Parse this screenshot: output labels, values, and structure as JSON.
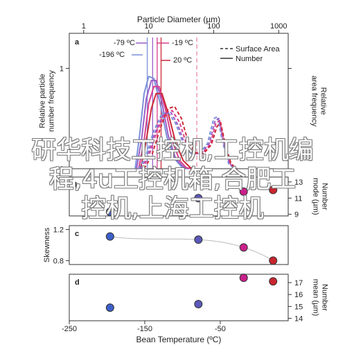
{
  "chart_data": [
    {
      "panel_label": "a",
      "type": "line",
      "top_xlabel": "Particle Diameter (µm)",
      "top_xscale": "log",
      "top_xticks": [
        1,
        10,
        100,
        1000
      ],
      "top_xticklabels": [
        "1",
        "10",
        "100",
        "1000"
      ],
      "ylabel_left": "Relative particle\nnumber frequency",
      "ylabel_right": "Relative\narea frequency",
      "ylim": [
        0,
        1.35
      ],
      "yticks": [
        0,
        1
      ],
      "legend": {
        "placement": "top-right",
        "entries": [
          "Surface Area",
          "Number"
        ]
      },
      "temperature_labels": [
        "-79 ºC",
        "-196 ºC",
        "-19 ºC",
        "20 ºC"
      ],
      "series": [
        {
          "temp": "-196 ºC",
          "kind": "number",
          "color": "#7a8fd8",
          "points": [
            [
              6.2,
              0
            ],
            [
              7.3,
              0.35
            ],
            [
              8.5,
              0.75
            ],
            [
              10,
              0.92
            ],
            [
              12,
              0.9
            ],
            [
              15,
              0.65
            ],
            [
              19,
              0.32
            ],
            [
              25,
              0.1
            ],
            [
              32,
              0.02
            ],
            [
              40,
              0
            ]
          ]
        },
        {
          "temp": "-79 ºC",
          "kind": "number",
          "color": "#9a5fc8",
          "points": [
            [
              6.5,
              0
            ],
            [
              7.8,
              0.3
            ],
            [
              9.2,
              0.7
            ],
            [
              11,
              0.88
            ],
            [
              13,
              0.88
            ],
            [
              16,
              0.66
            ],
            [
              20,
              0.33
            ],
            [
              26,
              0.1
            ],
            [
              34,
              0.02
            ],
            [
              42,
              0
            ]
          ]
        },
        {
          "temp": "-19 ºC",
          "kind": "number",
          "color": "#d93f8c",
          "points": [
            [
              7,
              0
            ],
            [
              8.5,
              0.28
            ],
            [
              10,
              0.65
            ],
            [
              12,
              0.82
            ],
            [
              14.5,
              0.82
            ],
            [
              18,
              0.6
            ],
            [
              23,
              0.28
            ],
            [
              30,
              0.08
            ],
            [
              38,
              0.01
            ],
            [
              46,
              0
            ]
          ]
        },
        {
          "temp": "20 ºC",
          "kind": "number",
          "color": "#cc2936",
          "points": [
            [
              7.5,
              0
            ],
            [
              9,
              0.25
            ],
            [
              11,
              0.6
            ],
            [
              13,
              0.75
            ],
            [
              16,
              0.75
            ],
            [
              20,
              0.55
            ],
            [
              26,
              0.26
            ],
            [
              34,
              0.08
            ],
            [
              44,
              0.01
            ],
            [
              52,
              0
            ]
          ]
        },
        {
          "temp": "-196 ºC",
          "kind": "area",
          "color": "#7a8fd8",
          "points": [
            [
              7,
              0
            ],
            [
              9,
              0.12
            ],
            [
              12,
              0.38
            ],
            [
              16,
              0.55
            ],
            [
              20,
              0.56
            ],
            [
              26,
              0.45
            ],
            [
              34,
              0.25
            ],
            [
              45,
              0.15
            ],
            [
              60,
              0.15
            ],
            [
              80,
              0.25
            ],
            [
              100,
              0.5
            ],
            [
              115,
              0.52
            ],
            [
              135,
              0.28
            ],
            [
              170,
              0.05
            ],
            [
              210,
              0
            ]
          ]
        },
        {
          "temp": "-79 ºC",
          "kind": "area",
          "color": "#9a5fc8",
          "points": [
            [
              7.5,
              0
            ],
            [
              9.5,
              0.12
            ],
            [
              12.5,
              0.36
            ],
            [
              17,
              0.55
            ],
            [
              22,
              0.56
            ],
            [
              28,
              0.44
            ],
            [
              36,
              0.24
            ],
            [
              48,
              0.15
            ],
            [
              64,
              0.15
            ],
            [
              85,
              0.25
            ],
            [
              105,
              0.48
            ],
            [
              120,
              0.5
            ],
            [
              140,
              0.27
            ],
            [
              175,
              0.05
            ],
            [
              215,
              0
            ]
          ]
        },
        {
          "temp": "-19 ºC",
          "kind": "area",
          "color": "#d93f8c",
          "points": [
            [
              8,
              0
            ],
            [
              10,
              0.12
            ],
            [
              13.5,
              0.38
            ],
            [
              18,
              0.56
            ],
            [
              23,
              0.58
            ],
            [
              30,
              0.46
            ],
            [
              38,
              0.25
            ],
            [
              50,
              0.15
            ],
            [
              66,
              0.15
            ],
            [
              88,
              0.24
            ],
            [
              108,
              0.45
            ],
            [
              124,
              0.48
            ],
            [
              145,
              0.26
            ],
            [
              180,
              0.05
            ],
            [
              220,
              0
            ]
          ]
        },
        {
          "temp": "20 ºC",
          "kind": "area",
          "color": "#cc2936",
          "points": [
            [
              8.5,
              0
            ],
            [
              11,
              0.12
            ],
            [
              15,
              0.4
            ],
            [
              20,
              0.6
            ],
            [
              25,
              0.62
            ],
            [
              32,
              0.5
            ],
            [
              40,
              0.28
            ],
            [
              52,
              0.16
            ],
            [
              70,
              0.15
            ],
            [
              92,
              0.24
            ],
            [
              112,
              0.42
            ],
            [
              128,
              0.46
            ],
            [
              150,
              0.25
            ],
            [
              185,
              0.05
            ],
            [
              225,
              0
            ]
          ]
        }
      ],
      "vlines": [
        {
          "x": 9.5,
          "color": "#7a8fd8",
          "style": "solid"
        },
        {
          "x": 11.5,
          "color": "#9a5fc8",
          "style": "solid"
        },
        {
          "x": 13.5,
          "color": "#d93f8c",
          "style": "solid"
        },
        {
          "x": 15.5,
          "color": "#cc2936",
          "style": "solid"
        },
        {
          "x": 55,
          "color": "#e58aa6",
          "style": "dashed"
        }
      ]
    },
    {
      "panel_label": "b",
      "type": "scatter",
      "ylabel_right": "Number\nmode (µm)",
      "ylim": [
        8.8,
        13.6
      ],
      "yticks": [
        9,
        11,
        13
      ],
      "points": [
        {
          "x": -196,
          "y": 9.3,
          "color": "#3d5fc9"
        },
        {
          "x": -79,
          "y": 11.0,
          "color": "#5b58b8"
        },
        {
          "x": -19,
          "y": 11.8,
          "color": "#c8208a"
        },
        {
          "x": 20,
          "y": 12.0,
          "color": "#c8252e"
        }
      ]
    },
    {
      "panel_label": "c",
      "type": "scatter",
      "ylabel_left": "Skewness",
      "ylim": [
        0.75,
        1.25
      ],
      "yticks": [
        0.8,
        1.2
      ],
      "yticklabels": [
        "0.8",
        "1.2"
      ],
      "fit_line": true,
      "points": [
        {
          "x": -196,
          "y": 1.11,
          "color": "#3d5fc9"
        },
        {
          "x": -79,
          "y": 1.07,
          "color": "#5b58b8"
        },
        {
          "x": -19,
          "y": 0.97,
          "color": "#c8208a"
        },
        {
          "x": 20,
          "y": 0.8,
          "color": "#c8252e"
        }
      ]
    },
    {
      "panel_label": "d",
      "type": "scatter",
      "xlabel": "Bean Temperature (ºC)",
      "xlim": [
        -250,
        40
      ],
      "xticks": [
        -250,
        -150,
        -50
      ],
      "xticklabels": [
        "-250",
        "-150",
        "-50"
      ],
      "ylabel_right": "Number\nmean (µm)",
      "ylim": [
        13.8,
        17.7
      ],
      "yticks": [
        14,
        15,
        16,
        17
      ],
      "points": [
        {
          "x": -196,
          "y": 14.9,
          "color": "#3d5fc9"
        },
        {
          "x": -79,
          "y": 15.2,
          "color": "#5b58b8"
        },
        {
          "x": -19,
          "y": 17.4,
          "color": "#c8208a"
        },
        {
          "x": 20,
          "y": 17.1,
          "color": "#c8252e"
        }
      ]
    }
  ],
  "overlay_text": [
    "研华科技工控机,工控机编",
    "程,4u工控机箱,合肥工",
    "控机,上海工控机"
  ]
}
